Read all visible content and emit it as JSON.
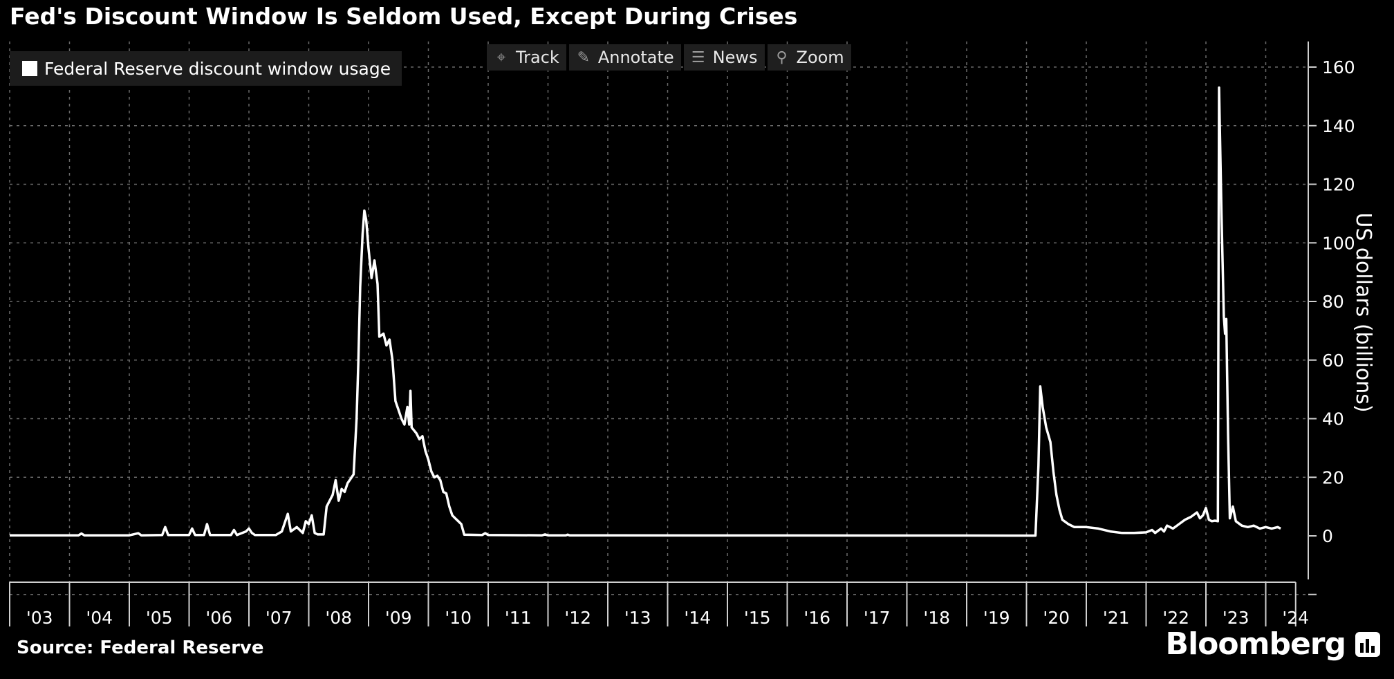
{
  "title": "Fed's Discount Window Is Seldom Used, Except During Crises",
  "toolbar": {
    "track_label": "Track",
    "annotate_label": "Annotate",
    "news_label": "News",
    "zoom_label": "Zoom"
  },
  "source": "Source: Federal Reserve",
  "brand": "Bloomberg",
  "colors": {
    "background": "#000000",
    "line": "#ffffff",
    "grid": "#6a6a6a",
    "panel": "#1c1c1c"
  },
  "icons": {
    "track": "crosshair-icon",
    "annotate": "pencil-icon",
    "news": "list-icon",
    "zoom": "magnifier-icon",
    "logo": "bloomberg-terminal-icon"
  },
  "chart_data": {
    "type": "line",
    "title": "Fed's Discount Window Is Seldom Used, Except During Crises",
    "ylabel": "US dollars (billions)",
    "xlabel": "",
    "ylim": [
      -15,
      168
    ],
    "xlim": [
      2003.0,
      2024.6
    ],
    "grid": true,
    "legend_position": "top-left",
    "yticks": [
      0,
      20,
      40,
      60,
      80,
      100,
      120,
      140,
      160
    ],
    "xticks": [
      "'03",
      "'04",
      "'05",
      "'06",
      "'07",
      "'08",
      "'09",
      "'10",
      "'11",
      "'12",
      "'13",
      "'14",
      "'15",
      "'16",
      "'17",
      "'18",
      "'19",
      "'20",
      "'21",
      "'22",
      "'23",
      "'24"
    ],
    "series": [
      {
        "name": "Federal Reserve discount window usage",
        "color": "#ffffff",
        "points": [
          [
            2003.0,
            0.2
          ],
          [
            2004.15,
            0.2
          ],
          [
            2004.2,
            0.8
          ],
          [
            2004.25,
            0.2
          ],
          [
            2005.0,
            0.2
          ],
          [
            2005.15,
            0.9
          ],
          [
            2005.2,
            0.2
          ],
          [
            2005.55,
            0.3
          ],
          [
            2005.6,
            3.0
          ],
          [
            2005.65,
            0.3
          ],
          [
            2006.0,
            0.3
          ],
          [
            2006.05,
            2.5
          ],
          [
            2006.1,
            0.3
          ],
          [
            2006.25,
            0.3
          ],
          [
            2006.3,
            4.0
          ],
          [
            2006.35,
            0.3
          ],
          [
            2006.7,
            0.3
          ],
          [
            2006.75,
            2.0
          ],
          [
            2006.8,
            0.3
          ],
          [
            2006.95,
            1.5
          ],
          [
            2007.0,
            2.5
          ],
          [
            2007.05,
            1.0
          ],
          [
            2007.1,
            0.3
          ],
          [
            2007.45,
            0.3
          ],
          [
            2007.55,
            1.5
          ],
          [
            2007.65,
            7.5
          ],
          [
            2007.7,
            1.5
          ],
          [
            2007.8,
            3.0
          ],
          [
            2007.9,
            1.0
          ],
          [
            2007.95,
            5.0
          ],
          [
            2008.0,
            4.0
          ],
          [
            2008.05,
            7.0
          ],
          [
            2008.1,
            1.0
          ],
          [
            2008.15,
            0.5
          ],
          [
            2008.25,
            0.5
          ],
          [
            2008.3,
            10.0
          ],
          [
            2008.35,
            12.0
          ],
          [
            2008.4,
            14.0
          ],
          [
            2008.45,
            19.0
          ],
          [
            2008.5,
            12.0
          ],
          [
            2008.55,
            16.0
          ],
          [
            2008.6,
            15.0
          ],
          [
            2008.65,
            18.0
          ],
          [
            2008.7,
            19.5
          ],
          [
            2008.75,
            21.0
          ],
          [
            2008.8,
            40.0
          ],
          [
            2008.83,
            60.0
          ],
          [
            2008.86,
            85.0
          ],
          [
            2008.9,
            103.0
          ],
          [
            2008.93,
            111.0
          ],
          [
            2008.96,
            108.0
          ],
          [
            2009.0,
            98.0
          ],
          [
            2009.05,
            88.0
          ],
          [
            2009.1,
            94.0
          ],
          [
            2009.15,
            86.0
          ],
          [
            2009.18,
            68.0
          ],
          [
            2009.25,
            69.0
          ],
          [
            2009.3,
            65.0
          ],
          [
            2009.35,
            67.0
          ],
          [
            2009.4,
            60.0
          ],
          [
            2009.45,
            46.0
          ],
          [
            2009.5,
            43.0
          ],
          [
            2009.55,
            40.0
          ],
          [
            2009.6,
            38.0
          ],
          [
            2009.65,
            44.0
          ],
          [
            2009.68,
            38.0
          ],
          [
            2009.7,
            49.5
          ],
          [
            2009.72,
            37.0
          ],
          [
            2009.8,
            35.0
          ],
          [
            2009.85,
            33.0
          ],
          [
            2009.9,
            34.0
          ],
          [
            2009.95,
            29.0
          ],
          [
            2010.0,
            26.0
          ],
          [
            2010.05,
            22.0
          ],
          [
            2010.1,
            20.0
          ],
          [
            2010.15,
            20.5
          ],
          [
            2010.2,
            19.0
          ],
          [
            2010.25,
            15.0
          ],
          [
            2010.3,
            14.5
          ],
          [
            2010.35,
            10.0
          ],
          [
            2010.4,
            7.0
          ],
          [
            2010.45,
            6.0
          ],
          [
            2010.5,
            5.0
          ],
          [
            2010.55,
            4.0
          ],
          [
            2010.6,
            0.4
          ],
          [
            2010.9,
            0.3
          ],
          [
            2010.95,
            0.9
          ],
          [
            2011.0,
            0.3
          ],
          [
            2011.9,
            0.2
          ],
          [
            2011.95,
            0.5
          ],
          [
            2012.0,
            0.2
          ],
          [
            2012.3,
            0.2
          ],
          [
            2012.33,
            0.4
          ],
          [
            2012.36,
            0.2
          ],
          [
            2019.7,
            0.1
          ],
          [
            2020.15,
            0.1
          ],
          [
            2020.2,
            24.0
          ],
          [
            2020.23,
            51.0
          ],
          [
            2020.27,
            44.0
          ],
          [
            2020.33,
            37.0
          ],
          [
            2020.4,
            32.0
          ],
          [
            2020.45,
            22.0
          ],
          [
            2020.5,
            14.0
          ],
          [
            2020.55,
            9.0
          ],
          [
            2020.6,
            5.5
          ],
          [
            2020.7,
            4.0
          ],
          [
            2020.8,
            3.0
          ],
          [
            2021.0,
            3.0
          ],
          [
            2021.2,
            2.5
          ],
          [
            2021.4,
            1.5
          ],
          [
            2021.6,
            1.0
          ],
          [
            2021.8,
            1.0
          ],
          [
            2022.0,
            1.2
          ],
          [
            2022.1,
            2.0
          ],
          [
            2022.15,
            1.0
          ],
          [
            2022.25,
            2.5
          ],
          [
            2022.3,
            1.5
          ],
          [
            2022.35,
            3.5
          ],
          [
            2022.45,
            2.5
          ],
          [
            2022.55,
            4.0
          ],
          [
            2022.65,
            5.5
          ],
          [
            2022.75,
            6.5
          ],
          [
            2022.85,
            8.0
          ],
          [
            2022.9,
            6.0
          ],
          [
            2022.95,
            7.0
          ],
          [
            2023.0,
            9.5
          ],
          [
            2023.05,
            5.5
          ],
          [
            2023.1,
            5.0
          ],
          [
            2023.15,
            5.2
          ],
          [
            2023.2,
            5.0
          ],
          [
            2023.22,
            153.0
          ],
          [
            2023.26,
            110.0
          ],
          [
            2023.3,
            75.0
          ],
          [
            2023.32,
            69.0
          ],
          [
            2023.34,
            74.0
          ],
          [
            2023.37,
            35.0
          ],
          [
            2023.4,
            6.0
          ],
          [
            2023.45,
            10.0
          ],
          [
            2023.5,
            5.0
          ],
          [
            2023.6,
            3.5
          ],
          [
            2023.7,
            3.0
          ],
          [
            2023.8,
            3.5
          ],
          [
            2023.9,
            2.5
          ],
          [
            2024.0,
            3.0
          ],
          [
            2024.1,
            2.5
          ],
          [
            2024.2,
            3.0
          ],
          [
            2024.25,
            2.5
          ]
        ]
      }
    ]
  }
}
